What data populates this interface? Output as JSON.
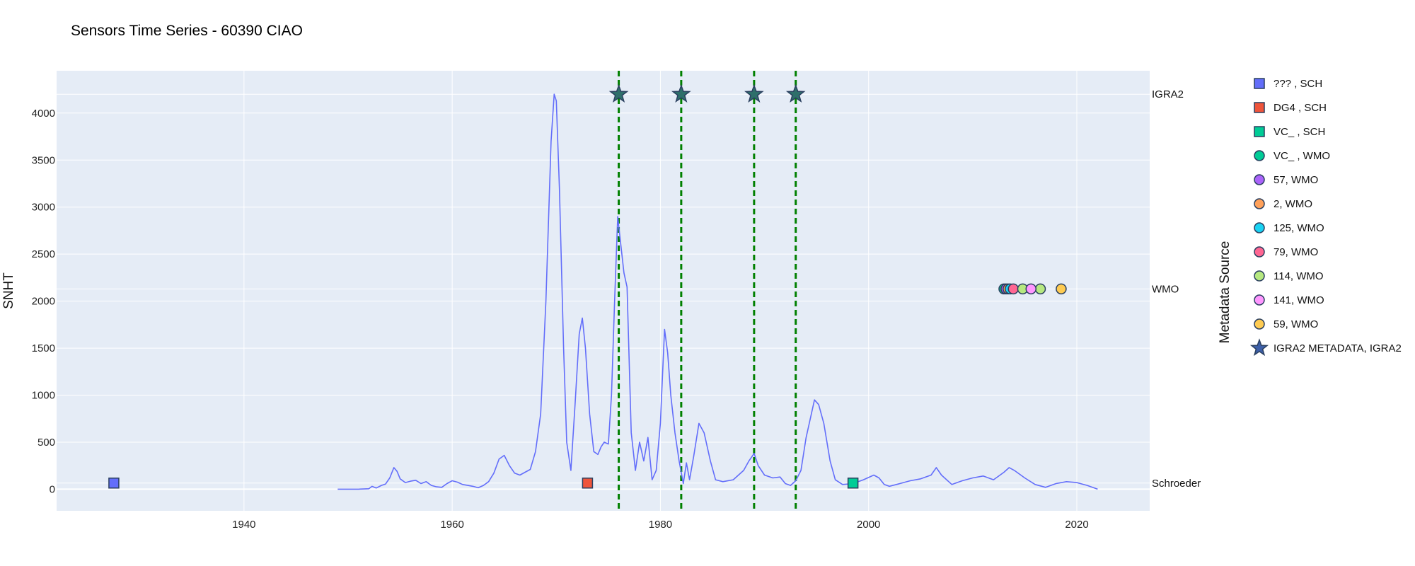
{
  "chart_data": {
    "type": "line",
    "title": "Sensors Time Series - 60390 CIAO",
    "ylabel": "SNHT",
    "xlabel": "",
    "xlim": [
      1922,
      2027
    ],
    "ylim": [
      -230,
      4450
    ],
    "x_ticks": [
      1940,
      1960,
      1980,
      2000,
      2020
    ],
    "y_ticks": [
      0,
      500,
      1000,
      1500,
      2000,
      2500,
      3000,
      3500,
      4000
    ],
    "grid": true,
    "legend_position": "right",
    "secondary_axis_title": "Metadata Source",
    "secondary_axis_labels": [
      {
        "label": "IGRA2",
        "y": 4200
      },
      {
        "label": "WMO",
        "y": 2130
      },
      {
        "label": "Schroeder",
        "y": 65
      }
    ],
    "series": [
      {
        "type": "line",
        "color": "#636efa",
        "points": [
          [
            1949.0,
            0
          ],
          [
            1951.0,
            0
          ],
          [
            1952.0,
            5
          ],
          [
            1952.3,
            30
          ],
          [
            1952.7,
            12
          ],
          [
            1953.2,
            40
          ],
          [
            1953.6,
            55
          ],
          [
            1954.0,
            120
          ],
          [
            1954.4,
            230
          ],
          [
            1954.7,
            190
          ],
          [
            1955.0,
            110
          ],
          [
            1955.5,
            70
          ],
          [
            1956.0,
            85
          ],
          [
            1956.5,
            95
          ],
          [
            1957.0,
            60
          ],
          [
            1957.5,
            80
          ],
          [
            1958.0,
            40
          ],
          [
            1958.5,
            25
          ],
          [
            1959.0,
            20
          ],
          [
            1959.5,
            60
          ],
          [
            1960.0,
            90
          ],
          [
            1960.5,
            75
          ],
          [
            1961.0,
            50
          ],
          [
            1961.5,
            40
          ],
          [
            1962.0,
            30
          ],
          [
            1962.5,
            15
          ],
          [
            1963.0,
            40
          ],
          [
            1963.5,
            80
          ],
          [
            1964.0,
            170
          ],
          [
            1964.5,
            320
          ],
          [
            1965.0,
            360
          ],
          [
            1965.5,
            250
          ],
          [
            1966.0,
            170
          ],
          [
            1966.5,
            150
          ],
          [
            1967.0,
            180
          ],
          [
            1967.5,
            210
          ],
          [
            1968.0,
            400
          ],
          [
            1968.5,
            800
          ],
          [
            1969.0,
            2000
          ],
          [
            1969.5,
            3700
          ],
          [
            1969.8,
            4200
          ],
          [
            1970.0,
            4130
          ],
          [
            1970.3,
            3200
          ],
          [
            1970.7,
            1500
          ],
          [
            1971.0,
            500
          ],
          [
            1971.4,
            200
          ],
          [
            1971.8,
            900
          ],
          [
            1972.2,
            1650
          ],
          [
            1972.5,
            1820
          ],
          [
            1972.8,
            1500
          ],
          [
            1973.2,
            800
          ],
          [
            1973.6,
            400
          ],
          [
            1974.0,
            370
          ],
          [
            1974.3,
            450
          ],
          [
            1974.6,
            500
          ],
          [
            1975.0,
            480
          ],
          [
            1975.3,
            1000
          ],
          [
            1975.6,
            2000
          ],
          [
            1975.9,
            2900
          ],
          [
            1976.1,
            2700
          ],
          [
            1976.5,
            2300
          ],
          [
            1976.8,
            2150
          ],
          [
            1977.2,
            600
          ],
          [
            1977.6,
            200
          ],
          [
            1978.0,
            500
          ],
          [
            1978.4,
            300
          ],
          [
            1978.8,
            550
          ],
          [
            1979.2,
            100
          ],
          [
            1979.6,
            200
          ],
          [
            1980.0,
            700
          ],
          [
            1980.4,
            1700
          ],
          [
            1980.7,
            1450
          ],
          [
            1981.0,
            1000
          ],
          [
            1981.4,
            600
          ],
          [
            1981.8,
            300
          ],
          [
            1982.2,
            60
          ],
          [
            1982.5,
            280
          ],
          [
            1982.8,
            100
          ],
          [
            1983.2,
            350
          ],
          [
            1983.7,
            700
          ],
          [
            1984.2,
            600
          ],
          [
            1984.8,
            300
          ],
          [
            1985.3,
            100
          ],
          [
            1986.0,
            80
          ],
          [
            1987.0,
            100
          ],
          [
            1988.0,
            200
          ],
          [
            1988.5,
            300
          ],
          [
            1989.0,
            380
          ],
          [
            1989.4,
            250
          ],
          [
            1990.0,
            150
          ],
          [
            1990.8,
            120
          ],
          [
            1991.5,
            130
          ],
          [
            1992.0,
            60
          ],
          [
            1992.5,
            40
          ],
          [
            1993.0,
            90
          ],
          [
            1993.5,
            200
          ],
          [
            1994.0,
            550
          ],
          [
            1994.4,
            750
          ],
          [
            1994.8,
            950
          ],
          [
            1995.2,
            900
          ],
          [
            1995.7,
            700
          ],
          [
            1996.3,
            300
          ],
          [
            1996.8,
            100
          ],
          [
            1997.5,
            50
          ],
          [
            1998.5,
            60
          ],
          [
            1999.5,
            100
          ],
          [
            2000.5,
            150
          ],
          [
            2001.0,
            120
          ],
          [
            2001.5,
            50
          ],
          [
            2002.0,
            30
          ],
          [
            2003.0,
            60
          ],
          [
            2004.0,
            90
          ],
          [
            2005.0,
            110
          ],
          [
            2006.0,
            150
          ],
          [
            2006.5,
            230
          ],
          [
            2007.0,
            150
          ],
          [
            2008.0,
            50
          ],
          [
            2009.0,
            90
          ],
          [
            2010.0,
            120
          ],
          [
            2011.0,
            140
          ],
          [
            2012.0,
            100
          ],
          [
            2013.0,
            180
          ],
          [
            2013.5,
            230
          ],
          [
            2014.0,
            200
          ],
          [
            2015.0,
            120
          ],
          [
            2016.0,
            50
          ],
          [
            2017.0,
            20
          ],
          [
            2018.0,
            60
          ],
          [
            2019.0,
            80
          ],
          [
            2020.0,
            70
          ],
          [
            2021.0,
            40
          ],
          [
            2022.0,
            0
          ]
        ]
      },
      {
        "name": "??? , SCH",
        "type": "marker",
        "symbol": "square",
        "color": "#636efa",
        "x": [
          1927.5
        ],
        "y": [
          65
        ]
      },
      {
        "name": "DG4 , SCH",
        "type": "marker",
        "symbol": "square",
        "color": "#ef553b",
        "x": [
          1973.0
        ],
        "y": [
          65
        ]
      },
      {
        "name": "VC_ , SCH",
        "type": "marker",
        "symbol": "square",
        "color": "#00cc96",
        "x": [
          1998.5
        ],
        "y": [
          65
        ]
      },
      {
        "name": "VC_ , WMO",
        "type": "marker",
        "symbol": "circle",
        "color": "#00cc96",
        "x": [
          2013.0
        ],
        "y": [
          2130
        ]
      },
      {
        "name": "57, WMO",
        "type": "marker",
        "symbol": "circle",
        "color": "#ab63fa",
        "x": [
          2013.2
        ],
        "y": [
          2130
        ]
      },
      {
        "name": "2, WMO",
        "type": "marker",
        "symbol": "circle",
        "color": "#ffa15a",
        "x": [
          2013.4
        ],
        "y": [
          2130
        ]
      },
      {
        "name": "125, WMO",
        "type": "marker",
        "symbol": "circle",
        "color": "#19d3f3",
        "x": [
          2013.6
        ],
        "y": [
          2130
        ]
      },
      {
        "name": "79, WMO",
        "type": "marker",
        "symbol": "circle",
        "color": "#ff6692",
        "x": [
          2013.9
        ],
        "y": [
          2130
        ]
      },
      {
        "name": "114, WMO",
        "type": "marker",
        "symbol": "circle",
        "color": "#b6e880",
        "x": [
          2014.8,
          2016.5
        ],
        "y": [
          2130,
          2130
        ]
      },
      {
        "name": "141, WMO",
        "type": "marker",
        "symbol": "circle",
        "color": "#ff97ff",
        "x": [
          2015.6
        ],
        "y": [
          2130
        ]
      },
      {
        "name": "59, WMO",
        "type": "marker",
        "symbol": "circle",
        "color": "#fecb52",
        "x": [
          2018.5
        ],
        "y": [
          2130
        ]
      },
      {
        "name": "IGRA2 METADATA, IGRA2",
        "type": "marker",
        "symbol": "star",
        "color": "#2e6f6a",
        "legend_color": "#3d5fa8",
        "x": [
          1976.0,
          1982.0,
          1989.0,
          1993.0
        ],
        "y": [
          4200,
          4200,
          4200,
          4200
        ]
      }
    ],
    "vertical_lines": {
      "color": "#008000",
      "style": "dashed",
      "x": [
        1976.0,
        1982.0,
        1989.0,
        1993.0
      ]
    }
  }
}
